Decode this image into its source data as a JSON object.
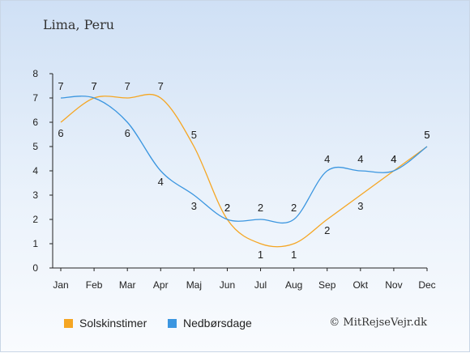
{
  "location": "Lima, Peru",
  "credit": "© MitRejseVejr.dk",
  "colors": {
    "sun": "#f5a623",
    "rain": "#3b96e0"
  },
  "chart_data": {
    "type": "line",
    "categories": [
      "Jan",
      "Feb",
      "Mar",
      "Apr",
      "Maj",
      "Jun",
      "Jul",
      "Aug",
      "Sep",
      "Okt",
      "Nov",
      "Dec"
    ],
    "y_ticks": [
      "0",
      "1",
      "2",
      "3",
      "4",
      "5",
      "6",
      "7",
      "8"
    ],
    "ylim": [
      0,
      8
    ],
    "series": [
      {
        "name": "Solskinstimer",
        "key": "sun",
        "values": [
          6,
          7,
          7,
          7,
          5,
          2,
          1,
          1,
          2,
          3,
          4,
          5
        ]
      },
      {
        "name": "Nedbørsdage",
        "key": "rain",
        "values": [
          7,
          7,
          6,
          4,
          3,
          2,
          2,
          2,
          4,
          4,
          4,
          5
        ]
      }
    ],
    "legend_position": "bottom-left",
    "grid": false
  }
}
